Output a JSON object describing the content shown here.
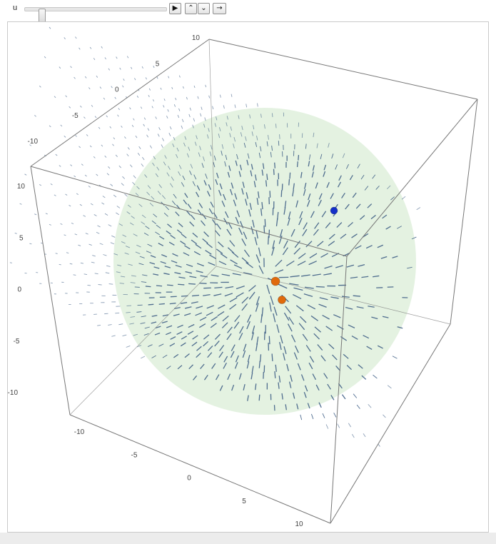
{
  "controls": {
    "slider_label": "u",
    "slider_value": 0.1,
    "play_icon": "play-icon",
    "faster_icon": "double-chevron-up-icon",
    "slower_icon": "double-chevron-down-icon",
    "direction_icon": "right-arrow-icon"
  },
  "plot": {
    "axis_ticks": {
      "left_vertical": [
        "10",
        "5",
        "0",
        "-5",
        "-10"
      ],
      "top_depth": [
        "10",
        "5",
        "0",
        "-5",
        "-10"
      ],
      "bottom_axis": [
        "-10",
        "-5",
        "0",
        "5",
        "10"
      ]
    },
    "colors": {
      "vectors": "#3f5f86",
      "sphere": "#dff0dc",
      "positive_charge": "#e06a0c",
      "negative_charge": "#1530c8",
      "box_edges": "#777777"
    },
    "charges": [
      {
        "name": "positive-charge-1",
        "color": "#e06a0c"
      },
      {
        "name": "positive-charge-2",
        "color": "#e06a0c"
      },
      {
        "name": "negative-charge",
        "color": "#1530c8"
      }
    ]
  }
}
